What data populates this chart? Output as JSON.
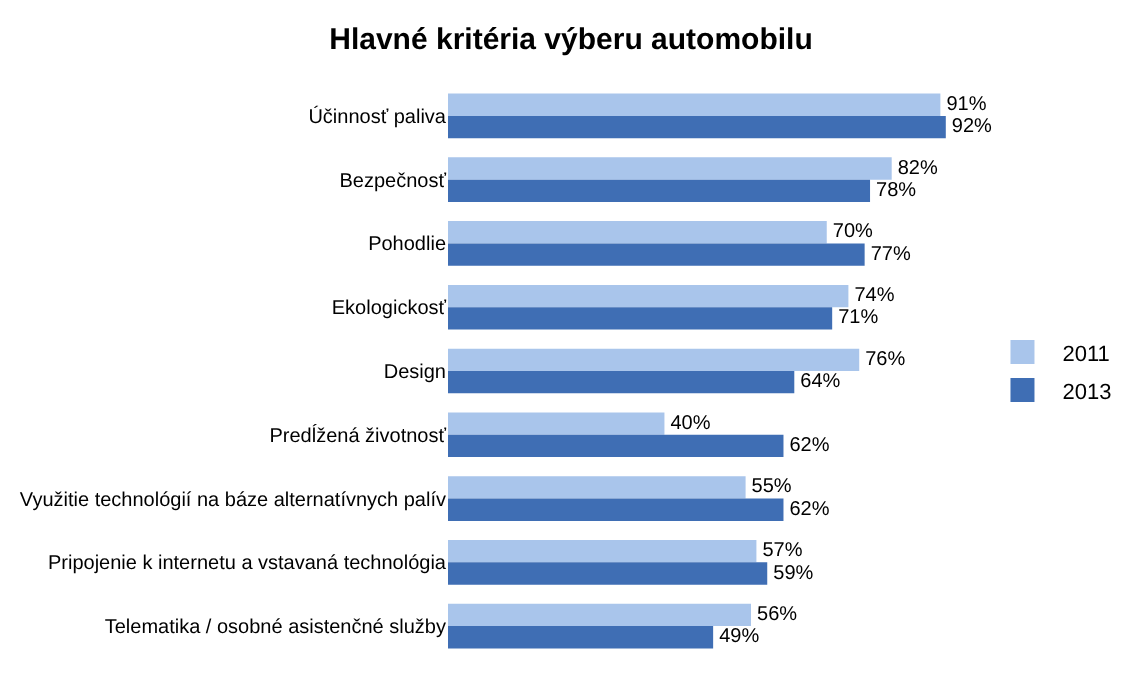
{
  "chart_data": {
    "type": "bar",
    "orientation": "horizontal",
    "title": "Hlavné kritéria výberu automobilu",
    "categories": [
      "Účinnosť paliva",
      "Bezpečnosť",
      "Pohodlie",
      "Ekologickosť",
      "Design",
      "Predĺžená životnosť",
      "Využitie technológií na báze alternatívnych palív",
      "Pripojenie k internetu a vstavaná technológia",
      "Telematika / osobné asistenčné služby"
    ],
    "series": [
      {
        "name": "2011",
        "color": "#a9c5eb",
        "values": [
          91,
          82,
          70,
          74,
          76,
          40,
          55,
          57,
          56
        ],
        "value_labels": [
          "91%",
          "82%",
          "70%",
          "74%",
          "76%",
          "40%",
          "55%",
          "57%",
          "56%"
        ]
      },
      {
        "name": "2013",
        "color": "#3f6eb4",
        "values": [
          92,
          78,
          77,
          71,
          64,
          62,
          62,
          59,
          49
        ],
        "value_labels": [
          "92%",
          "78%",
          "77%",
          "71%",
          "64%",
          "62%",
          "62%",
          "59%",
          "49%"
        ]
      }
    ],
    "legend": "right"
  }
}
